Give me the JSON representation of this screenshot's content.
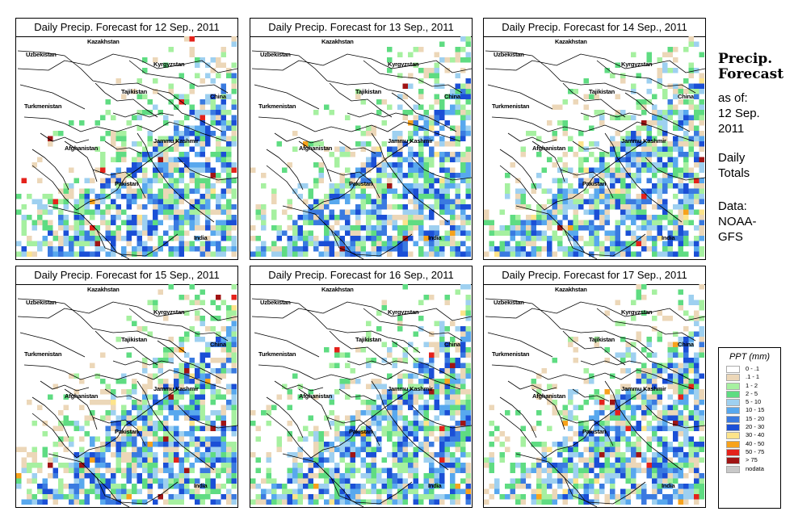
{
  "panels": [
    {
      "title": "Daily Precip. Forecast for  12 Sep., 2011",
      "seed": 12
    },
    {
      "title": "Daily Precip. Forecast for  13 Sep., 2011",
      "seed": 13
    },
    {
      "title": "Daily Precip. Forecast for  14 Sep., 2011",
      "seed": 14
    },
    {
      "title": "Daily Precip. Forecast for  15 Sep., 2011",
      "seed": 15
    },
    {
      "title": "Daily Precip. Forecast for  16 Sep., 2011",
      "seed": 16
    },
    {
      "title": "Daily Precip. Forecast for  17 Sep., 2011",
      "seed": 17
    }
  ],
  "map_labels": {
    "kazakhstan": "Kazakhstan",
    "uzbekistan": "Uzbekistan",
    "kyrgyzstan": "Kyrgyzstan",
    "tajikistan": "Tajikistan",
    "china": "China",
    "turkmenistan": "Turkmenistan",
    "afghanistan": "Afghanistan",
    "jammu_kashmir": "Jammu Kashmir",
    "pakistan": "Pakistan",
    "india": "India"
  },
  "sidebar": {
    "title_line1": "Precip.",
    "title_line2": "Forecast",
    "asof_line1": "as of:",
    "asof_line2": "12 Sep.",
    "asof_line3": "2011",
    "totals_line1": "Daily",
    "totals_line2": "Totals",
    "data_line1": "Data:",
    "data_line2": "NOAA-",
    "data_line3": "GFS"
  },
  "legend": {
    "title": "PPT (mm)",
    "items": [
      {
        "range": "0 - .1",
        "color": "#ffffff"
      },
      {
        "range": ".1 - 1",
        "color": "#ecd7b8"
      },
      {
        "range": "1 - 2",
        "color": "#a6f0a0"
      },
      {
        "range": "2 - 5",
        "color": "#5fdc82"
      },
      {
        "range": "5 - 10",
        "color": "#9ed0f0"
      },
      {
        "range": "10 - 15",
        "color": "#58a8ee"
      },
      {
        "range": "15 - 20",
        "color": "#3a7ae0"
      },
      {
        "range": "20 - 30",
        "color": "#1b4fd6"
      },
      {
        "range": "30 - 40",
        "color": "#fde48a"
      },
      {
        "range": "40 - 50",
        "color": "#f7a21c"
      },
      {
        "range": "50 - 75",
        "color": "#e4221b"
      },
      {
        "range": "> 75",
        "color": "#a01414"
      },
      {
        "range": "nodata",
        "color": "#c8c8c8"
      }
    ]
  }
}
